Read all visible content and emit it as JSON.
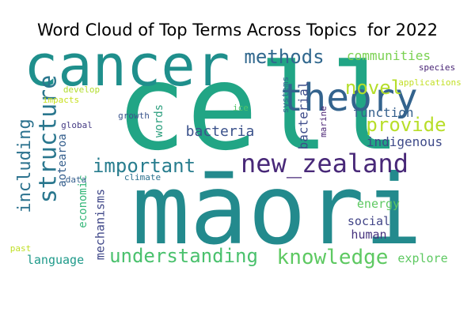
{
  "chart_data": {
    "type": "wordcloud",
    "title": "Word Cloud of Top Terms Across Topics  for 2022",
    "background": "#ffffff",
    "colormap": "viridis",
    "words": [
      {
        "text": "cell",
        "color": "#21a585",
        "weight": 1.0
      },
      {
        "text": "māori",
        "color": "#238a8d",
        "weight": 0.96
      },
      {
        "text": "cancer",
        "color": "#1f8f8c",
        "weight": 0.6
      },
      {
        "text": "theory",
        "color": "#33638d",
        "weight": 0.38
      },
      {
        "text": "new_zealand",
        "color": "#482878",
        "weight": 0.3
      },
      {
        "text": "structure",
        "color": "#2a778e",
        "weight": 0.27
      },
      {
        "text": "understanding",
        "color": "#4ac16d",
        "weight": 0.22
      },
      {
        "text": "knowledge",
        "color": "#5ec962",
        "weight": 0.22
      },
      {
        "text": "important",
        "color": "#287d8e",
        "weight": 0.21
      },
      {
        "text": "methods",
        "color": "#31688e",
        "weight": 0.19
      },
      {
        "text": "novel",
        "color": "#b5de2b",
        "weight": 0.19
      },
      {
        "text": "provide",
        "color": "#b8de29",
        "weight": 0.19
      },
      {
        "text": "including",
        "color": "#2c728e",
        "weight": 0.19
      },
      {
        "text": "bacteria",
        "color": "#3b528b",
        "weight": 0.17
      },
      {
        "text": "communities",
        "color": "#7ad151",
        "weight": 0.15
      },
      {
        "text": "function",
        "color": "#35608d",
        "weight": 0.15
      },
      {
        "text": "indigenous",
        "color": "#3e4a89",
        "weight": 0.14
      },
      {
        "text": "bacterial",
        "color": "#3e4c8a",
        "weight": 0.14
      },
      {
        "text": "energy",
        "color": "#5ec962",
        "weight": 0.13
      },
      {
        "text": "social",
        "color": "#414487",
        "weight": 0.13
      },
      {
        "text": "human",
        "color": "#46327e",
        "weight": 0.13
      },
      {
        "text": "language",
        "color": "#1f9a8a",
        "weight": 0.13
      },
      {
        "text": "explore",
        "color": "#5ec962",
        "weight": 0.13
      },
      {
        "text": "mechanisms",
        "color": "#3f4788",
        "weight": 0.12
      },
      {
        "text": "economic",
        "color": "#35b779",
        "weight": 0.12
      },
      {
        "text": "aotearoa",
        "color": "#355f8d",
        "weight": 0.11
      },
      {
        "text": "words",
        "color": "#2ea07f",
        "weight": 0.11
      },
      {
        "text": "systems",
        "color": "#31668e",
        "weight": 0.09
      },
      {
        "text": "marine",
        "color": "#482173",
        "weight": 0.08
      },
      {
        "text": "species",
        "color": "#482475",
        "weight": 0.08
      },
      {
        "text": "applications",
        "color": "#c2df23",
        "weight": 0.07
      },
      {
        "text": "develop",
        "color": "#b2dd2d",
        "weight": 0.08
      },
      {
        "text": "impacts",
        "color": "#c8e020",
        "weight": 0.08
      },
      {
        "text": "global",
        "color": "#443a83",
        "weight": 0.08
      },
      {
        "text": "growth",
        "color": "#3a548c",
        "weight": 0.08
      },
      {
        "text": "ice",
        "color": "#52c569",
        "weight": 0.08
      },
      {
        "text": "data",
        "color": "#355f8d",
        "weight": 0.08
      },
      {
        "text": "climate",
        "color": "#2c718e",
        "weight": 0.08
      },
      {
        "text": "past",
        "color": "#c0df25",
        "weight": 0.07
      }
    ]
  }
}
